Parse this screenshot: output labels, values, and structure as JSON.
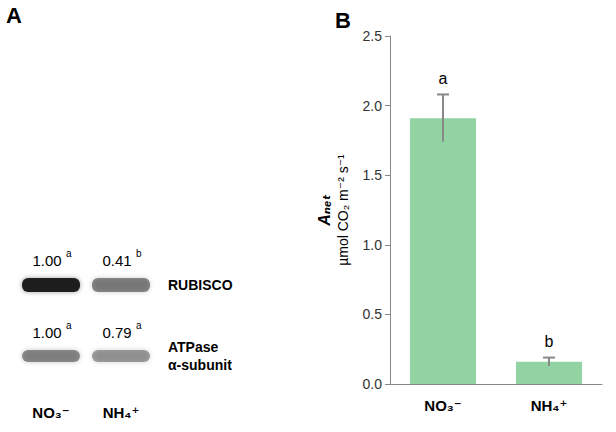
{
  "blot": {
    "label": "A",
    "lanes": [
      "NO₃⁻",
      "NH₄⁺"
    ],
    "rows": [
      {
        "name": "RUBISCO",
        "values": [
          1.0,
          0.41
        ],
        "value_labels": [
          "1.00",
          "0.41"
        ],
        "letters": [
          "a",
          "b"
        ]
      },
      {
        "name": "ATPase\nα-subunit",
        "values": [
          1.0,
          0.79
        ],
        "value_labels": [
          "1.00",
          "0.79"
        ],
        "letters": [
          "a",
          "a"
        ]
      }
    ]
  },
  "chart_data": {
    "type": "bar",
    "title": "B",
    "categories": [
      "NO₃⁻",
      "NH₄⁺"
    ],
    "values": [
      1.91,
      0.16
    ],
    "errors": [
      0.17,
      0.03
    ],
    "annotations": [
      "a",
      "b"
    ],
    "color": "#92d3a4",
    "ylabel": "Aₙₑₜ\nµmol CO₂ m⁻² s⁻¹",
    "ylim": [
      0,
      2.5
    ],
    "yticks": [
      {
        "value": 0,
        "label": "0.0"
      },
      0.5,
      {
        "value": 1,
        "label": "1.0"
      },
      1.5,
      {
        "value": 2,
        "label": "2.0"
      },
      2.5
    ],
    "grid": false
  }
}
